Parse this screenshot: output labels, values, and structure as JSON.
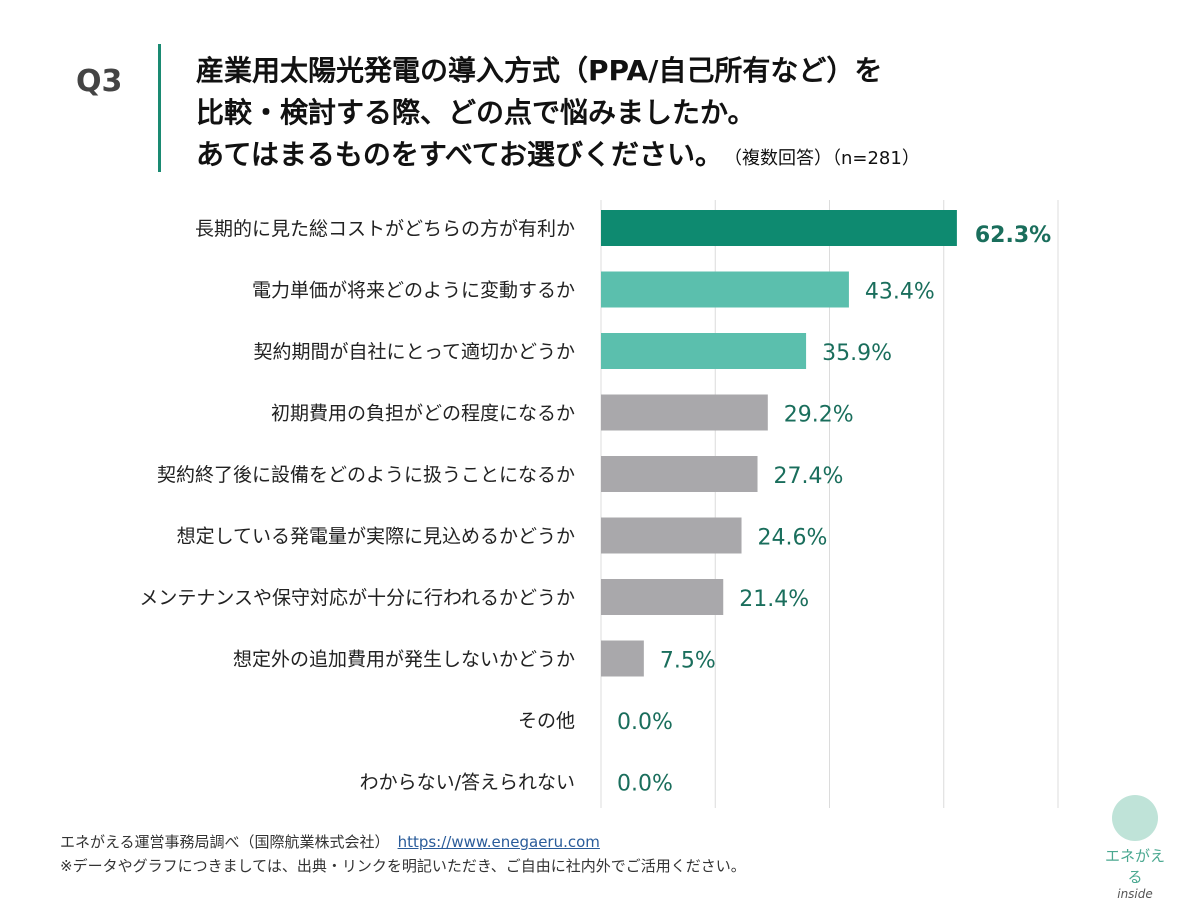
{
  "header": {
    "q_label": "Q3",
    "title_lines": [
      "産業用太陽光発電の導入方式（PPA/自己所有など）を",
      "比較・検討する際、どの点で悩みましたか。",
      "あてはまるものをすべてお選びください。"
    ],
    "note": "（複数回答）（n=281）"
  },
  "chart_data": {
    "type": "bar",
    "orientation": "horizontal",
    "categories": [
      "長期的に見た総コストがどちらの方が有利か",
      "電力単価が将来どのように変動するか",
      "契約期間が自社にとって適切かどうか",
      "初期費用の負担がどの程度になるか",
      "契約終了後に設備をどのように扱うことになるか",
      "想定している発電量が実際に見込めるかどうか",
      "メンテナンスや保守対応が十分に行われるかどうか",
      "想定外の追加費用が発生しないかどうか",
      "その他",
      "わからない/答えられない"
    ],
    "values": [
      62.3,
      43.4,
      35.9,
      29.2,
      27.4,
      24.6,
      21.4,
      7.5,
      0.0,
      0.0
    ],
    "data_labels": [
      "62.3%",
      "43.4%",
      "35.9%",
      "29.2%",
      "27.4%",
      "24.6%",
      "21.4%",
      "7.5%",
      "0.0%",
      "0.0%"
    ],
    "bar_colors": [
      "#0e8a70",
      "#5bbfad",
      "#5bbfad",
      "#a9a8ab",
      "#a9a8ab",
      "#a9a8ab",
      "#a9a8ab",
      "#a9a8ab",
      "#a9a8ab",
      "#a9a8ab"
    ],
    "label_color": "#1a6e5c",
    "xlim": [
      0,
      80
    ],
    "grid": true
  },
  "footer": {
    "source": "エネがえる運営事務局調べ（国際航業株式会社）",
    "link": "https://www.enegaeru.com",
    "note": "※データやグラフにつきましては、出典・リンクを明記いただき、ご自由に社内外でご活用ください。"
  },
  "logo": {
    "text": "エネがえる",
    "sub": "inside"
  }
}
